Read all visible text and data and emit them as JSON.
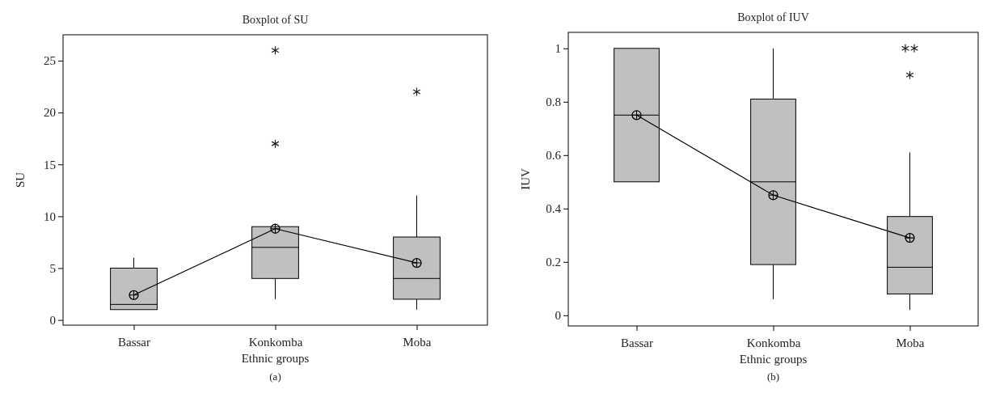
{
  "chart_data": [
    {
      "type": "box",
      "title": "Boxplot of SU",
      "xlabel": "Ethnic groups",
      "ylabel": "SU",
      "categories": [
        "Bassar",
        "Konkomba",
        "Moba"
      ],
      "color": "#c0c0c0",
      "marker": "circle",
      "boxes": [
        {
          "low": 1,
          "q1": 1,
          "median": 1.5,
          "q3": 5,
          "high": 6
        },
        {
          "low": 2,
          "q1": 4,
          "median": 7,
          "q3": 9,
          "high": 9,
          "outliers": [
            26,
            17
          ]
        },
        {
          "low": 1,
          "q1": 2,
          "median": 4,
          "q3": 8,
          "high": 12,
          "outliers": [
            22
          ]
        }
      ],
      "series": [
        {
          "type": "line",
          "color": "#000000",
          "values": [
            2.4,
            8.8,
            5.5
          ]
        }
      ],
      "ylim": [
        -0.5,
        27.5
      ],
      "yticks": [
        0,
        5,
        10,
        15,
        20,
        25
      ],
      "grid": false,
      "annotations": [
        "(a)"
      ]
    },
    {
      "type": "box",
      "title": "Boxplot of IUV",
      "xlabel": "Ethnic groups",
      "ylabel": "IUV",
      "categories": [
        "Bassar",
        "Konkomba",
        "Moba"
      ],
      "color": "#c0c0c0",
      "marker": "circle",
      "boxes": [
        {
          "low": 0.5,
          "q1": 0.5,
          "median": 0.75,
          "q3": 1,
          "high": 1
        },
        {
          "low": 0.06,
          "q1": 0.19,
          "median": 0.5,
          "q3": 0.81,
          "high": 1
        },
        {
          "low": 0.02,
          "q1": 0.08,
          "median": 0.18,
          "q3": 0.37,
          "high": 0.61,
          "outliers": [
            1,
            1,
            0.9
          ]
        }
      ],
      "series": [
        {
          "type": "line",
          "color": "#000000",
          "values": [
            0.75,
            0.45,
            0.29
          ]
        }
      ],
      "ylim": [
        -0.04,
        1.06
      ],
      "yticks": [
        0,
        0.2,
        0.4,
        0.6,
        0.8,
        1
      ],
      "grid": false,
      "annotations": [
        "(b)"
      ]
    }
  ]
}
